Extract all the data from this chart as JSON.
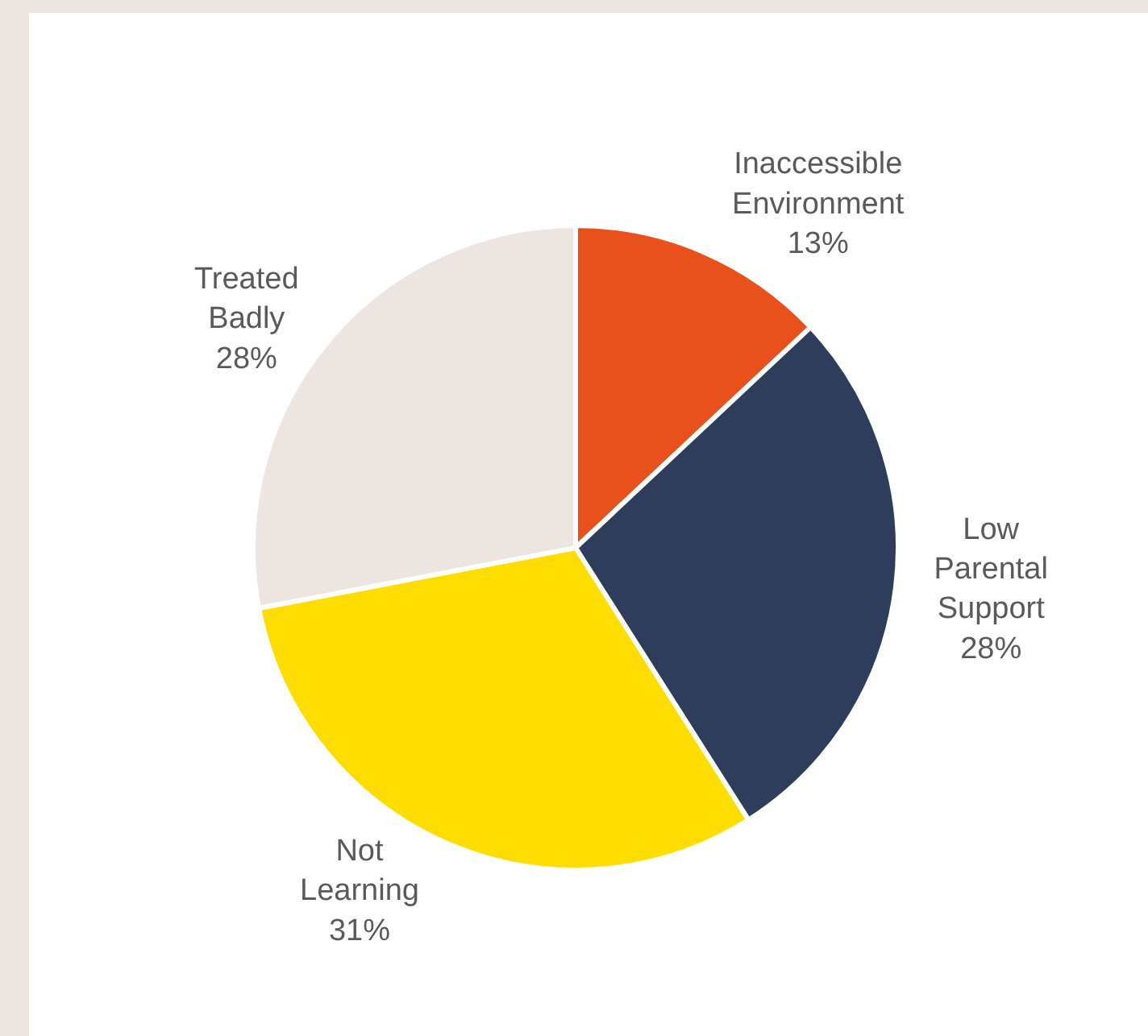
{
  "chart_data": {
    "type": "pie",
    "categories": [
      "Inaccessible Environment",
      "Low Parental Support",
      "Not Learning",
      "Treated Badly"
    ],
    "values": [
      13,
      28,
      31,
      28
    ],
    "value_labels": [
      "13%",
      "28%",
      "31%",
      "28%"
    ],
    "colors": [
      "#e8501c",
      "#2d3d5b",
      "#ffdd00",
      "#ece5e0"
    ],
    "legend": false
  }
}
